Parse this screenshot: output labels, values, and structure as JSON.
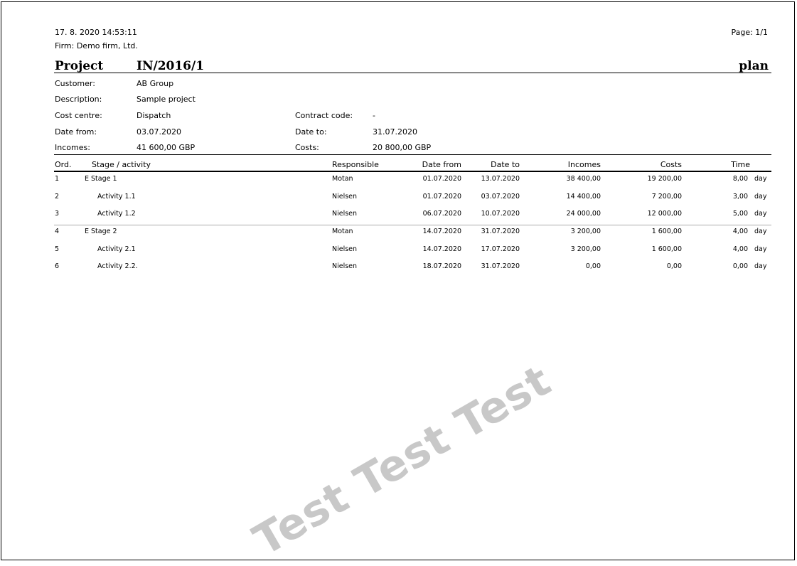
{
  "header": {
    "datetime": "17. 8. 2020  14:53:11",
    "page": "Page: 1/1",
    "firm": "Firm: Demo firm, Ltd."
  },
  "title": {
    "label": "Project",
    "number": "IN/2016/1",
    "type": "plan"
  },
  "info": {
    "customer_label": "Customer:",
    "customer": "AB Group",
    "description_label": "Description:",
    "description": "Sample project",
    "cost_centre_label": "Cost centre:",
    "cost_centre": "Dispatch",
    "contract_code_label": "Contract code:",
    "contract_code": "-",
    "date_from_label": "Date from:",
    "date_from": "03.07.2020",
    "date_to_label": "Date to:",
    "date_to": "31.07.2020",
    "incomes_label": "Incomes:",
    "incomes": "41 600,00 GBP",
    "costs_label": "Costs:",
    "costs": "20 800,00 GBP"
  },
  "table": {
    "columns": [
      "Ord.",
      "Stage / activity",
      "Responsible",
      "Date from",
      "Date to",
      "Incomes",
      "Costs",
      "Time"
    ],
    "rows": [
      {
        "ord": "1",
        "name": "E Stage 1",
        "level": 0,
        "responsible": "Motan",
        "date_from": "01.07.2020",
        "date_to": "13.07.2020",
        "incomes": "38 400,00",
        "costs": "19 200,00",
        "time": "8,00",
        "unit": "day"
      },
      {
        "ord": "2",
        "name": "Activity 1.1",
        "level": 1,
        "responsible": "Nielsen",
        "date_from": "01.07.2020",
        "date_to": "03.07.2020",
        "incomes": "14 400,00",
        "costs": "7 200,00",
        "time": "3,00",
        "unit": "day"
      },
      {
        "ord": "3",
        "name": "Activity 1.2",
        "level": 1,
        "responsible": "Nielsen",
        "date_from": "06.07.2020",
        "date_to": "10.07.2020",
        "incomes": "24 000,00",
        "costs": "12 000,00",
        "time": "5,00",
        "unit": "day"
      },
      {
        "ord": "4",
        "name": "E Stage 2",
        "level": 0,
        "responsible": "Motan",
        "date_from": "14.07.2020",
        "date_to": "31.07.2020",
        "incomes": "3 200,00",
        "costs": "1 600,00",
        "time": "4,00",
        "unit": "day"
      },
      {
        "ord": "5",
        "name": "Activity 2.1",
        "level": 1,
        "responsible": "Nielsen",
        "date_from": "14.07.2020",
        "date_to": "17.07.2020",
        "incomes": "3 200,00",
        "costs": "1 600,00",
        "time": "4,00",
        "unit": "day"
      },
      {
        "ord": "6",
        "name": "Activity 2.2.",
        "level": 1,
        "responsible": "Nielsen",
        "date_from": "18.07.2020",
        "date_to": "31.07.2020",
        "incomes": "0,00",
        "costs": "0,00",
        "time": "0,00",
        "unit": "day"
      }
    ]
  },
  "watermark": "Test Test Test"
}
